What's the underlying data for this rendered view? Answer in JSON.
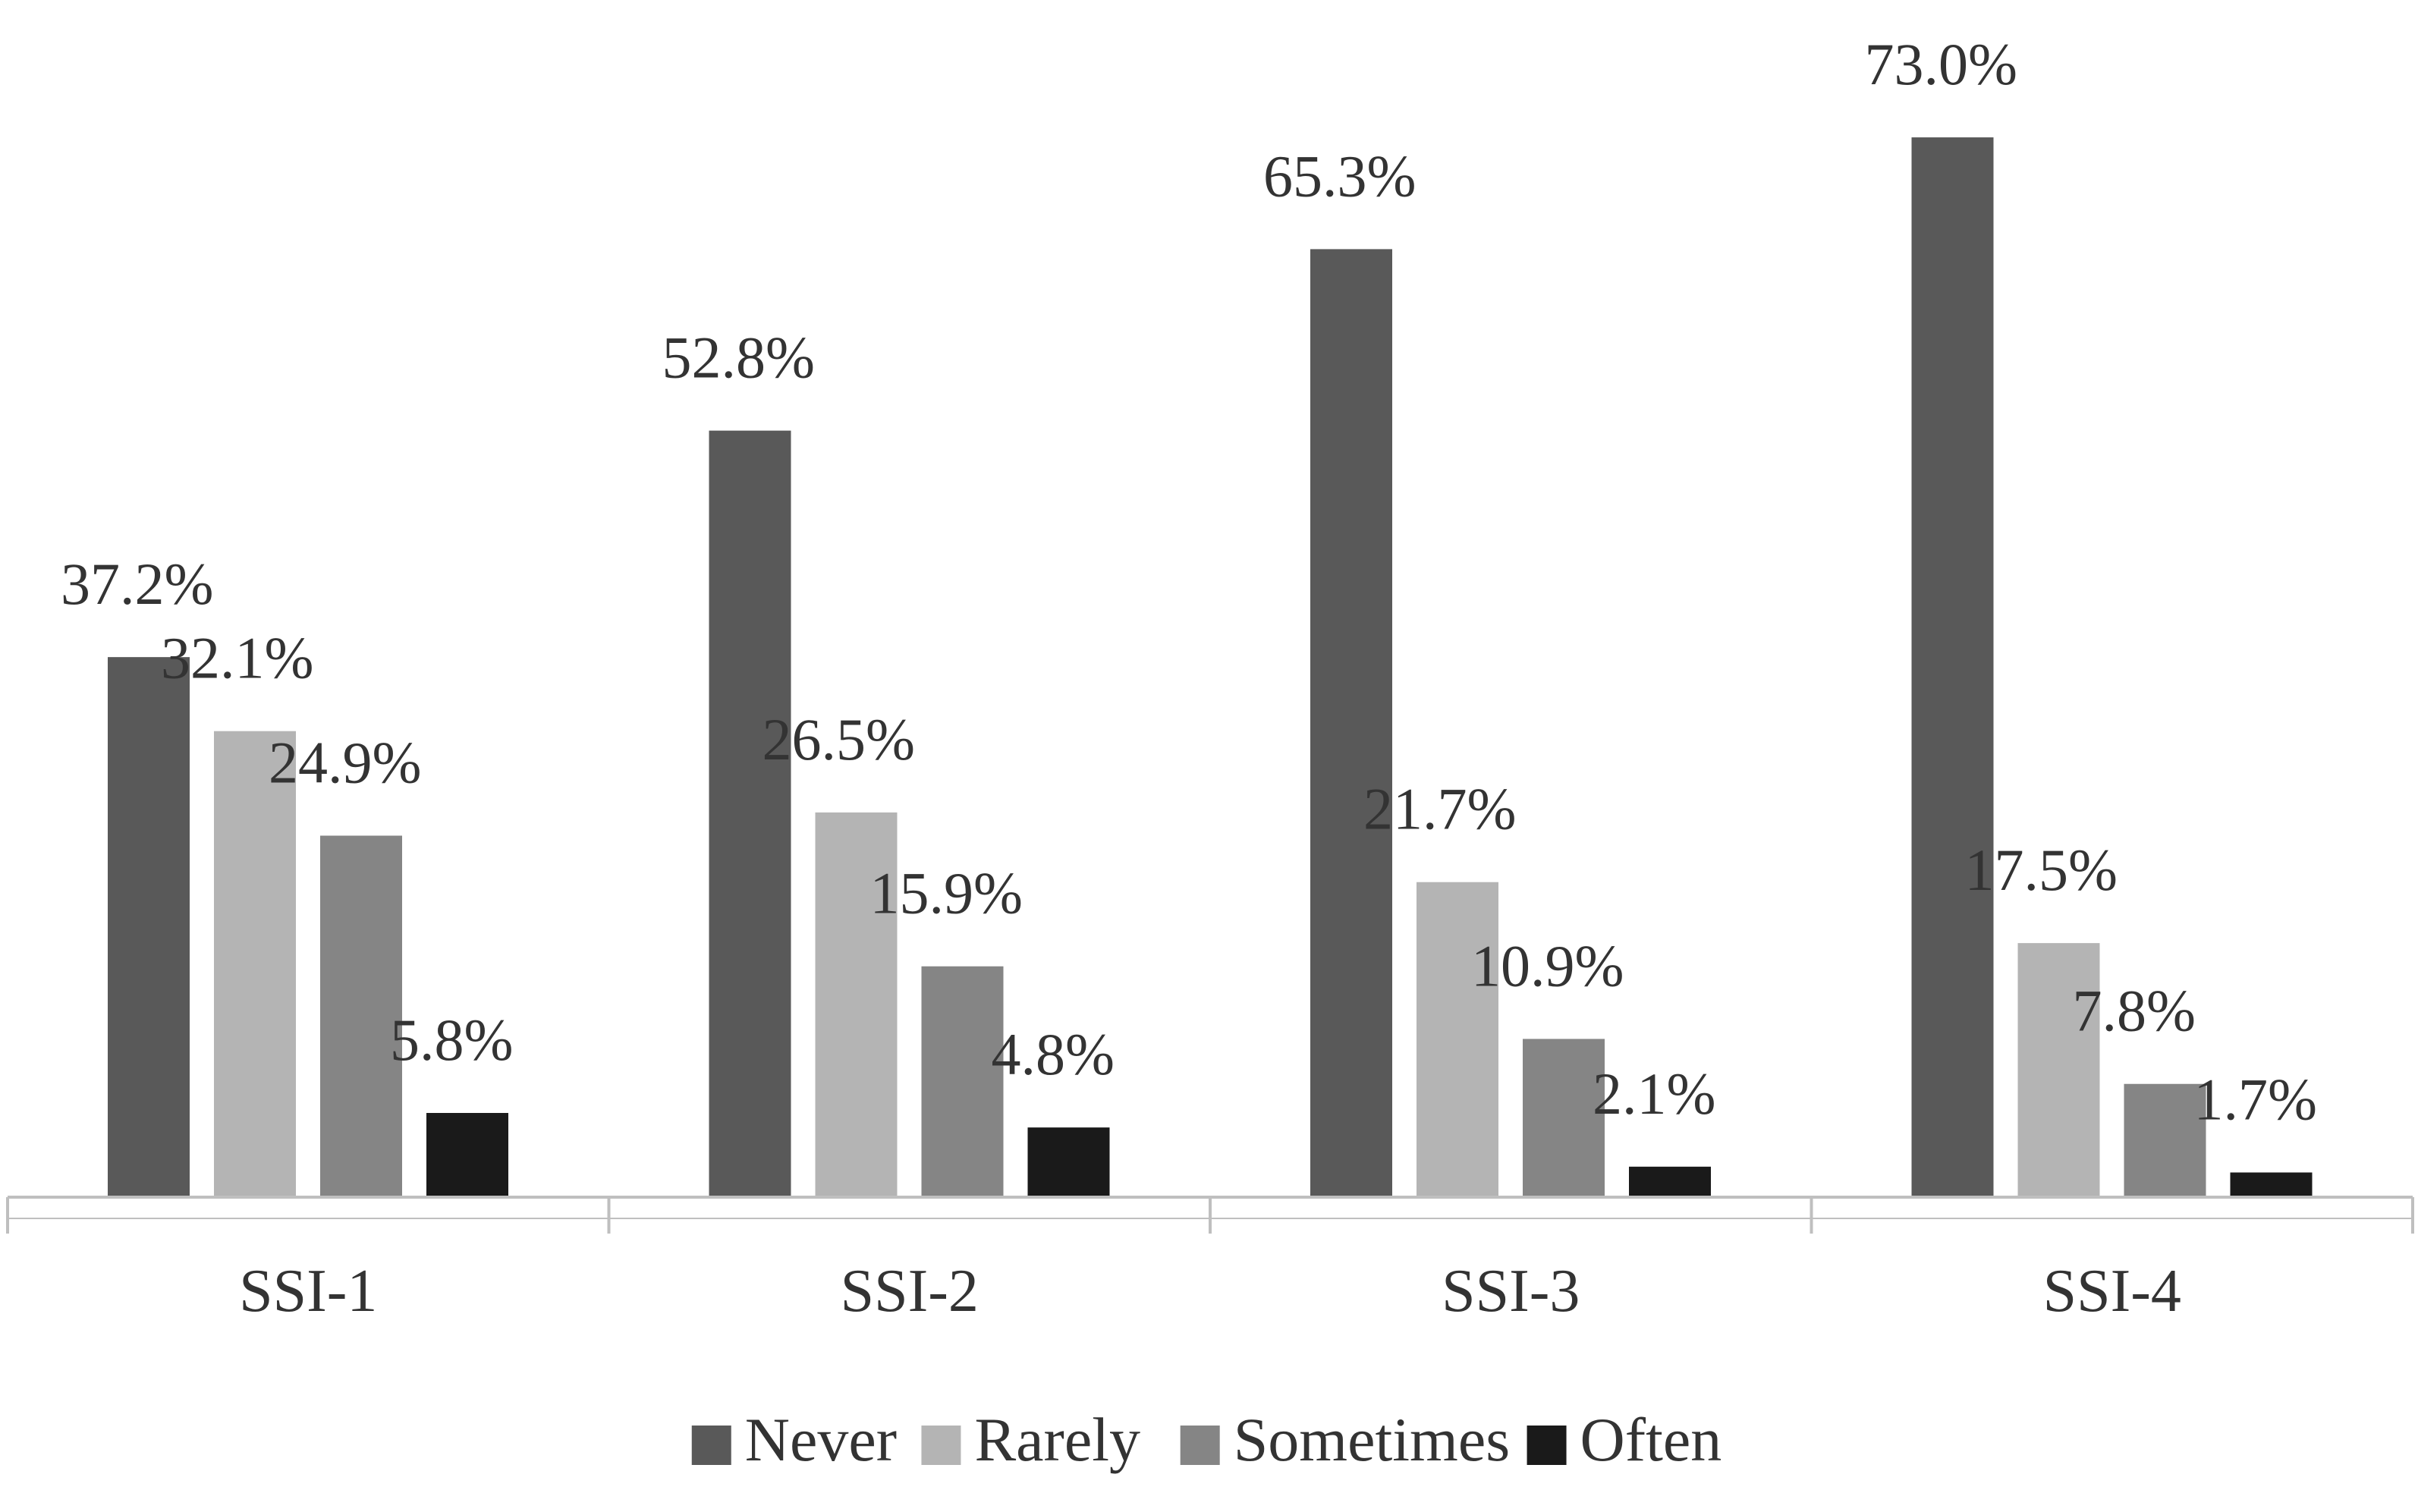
{
  "chart_data": {
    "type": "bar",
    "title": "",
    "xlabel": "",
    "ylabel": "",
    "categories": [
      "SSI-1",
      "SSI-2",
      "SSI-3",
      "SSI-4"
    ],
    "series": [
      {
        "name": "Never",
        "values": [
          37.2,
          52.8,
          65.3,
          73.0
        ],
        "labels": [
          "37.2%",
          "52.8%",
          "65.3%",
          "73.0%"
        ],
        "color": "#595959"
      },
      {
        "name": "Rarely",
        "values": [
          32.1,
          26.5,
          21.7,
          17.5
        ],
        "labels": [
          "32.1%",
          "26.5%",
          "21.7%",
          "17.5%"
        ],
        "color": "#b4b4b4"
      },
      {
        "name": "Sometimes",
        "values": [
          24.9,
          15.9,
          10.9,
          7.8
        ],
        "labels": [
          "24.9%",
          "15.9%",
          "10.9%",
          "7.8%"
        ],
        "color": "#858585"
      },
      {
        "name": "Often",
        "values": [
          5.8,
          4.8,
          2.1,
          1.7
        ],
        "labels": [
          "5.8%",
          "4.8%",
          "2.1%",
          "1.7%"
        ],
        "color": "#1a1a1a"
      }
    ],
    "ylim": [
      0,
      80
    ],
    "grid": false,
    "legend": "bottom",
    "axis_color": "#bfbfbf",
    "text_color": "#333333"
  }
}
